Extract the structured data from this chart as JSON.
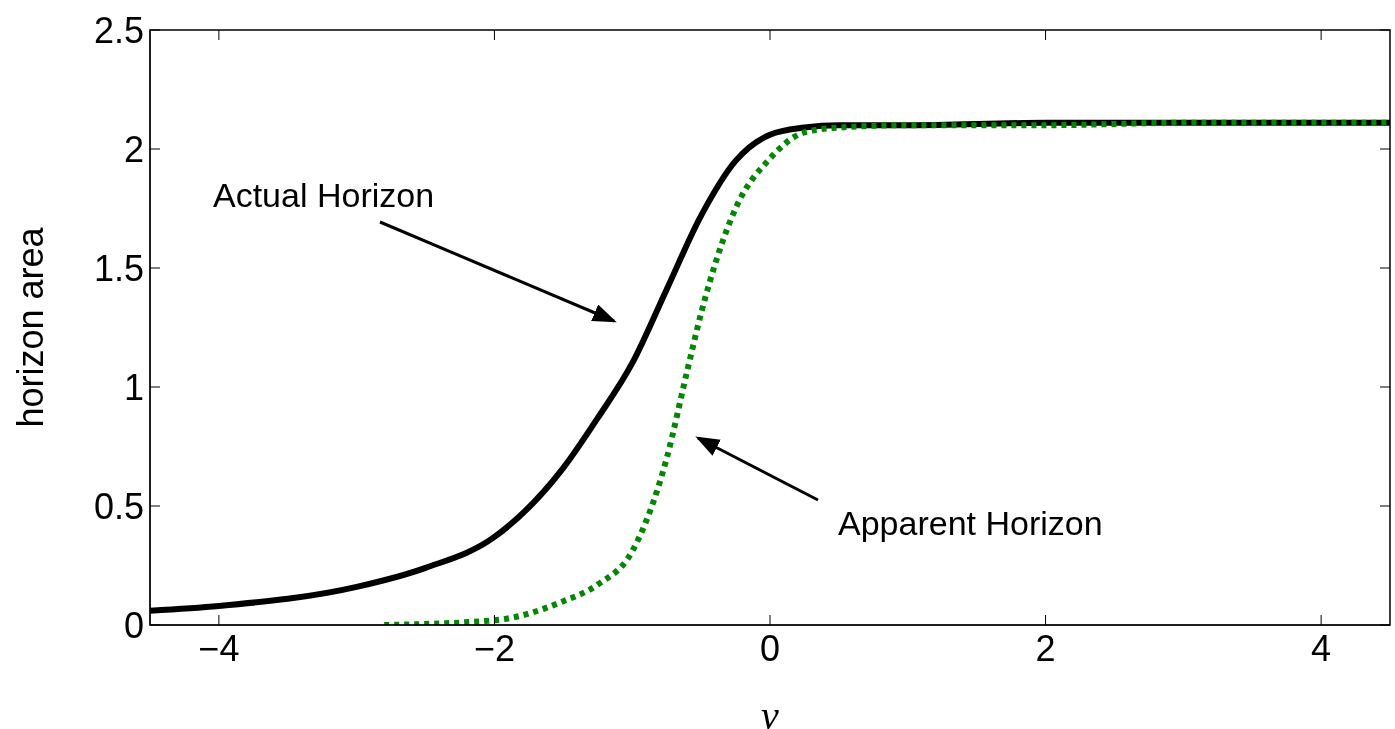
{
  "chart_data": {
    "type": "line",
    "xlabel": "v",
    "ylabel": "horizon area",
    "xlim": [
      -4.5,
      4.5
    ],
    "xticks": [
      -4,
      -2,
      0,
      2,
      4
    ],
    "ylim": [
      0,
      2.5
    ],
    "yticks": [
      0,
      0.5,
      1,
      1.5,
      2,
      2.5
    ],
    "grid": false,
    "legend": false,
    "marker": "none",
    "series": [
      {
        "color": "#000000",
        "line_style": "solid",
        "x": [
          -4.5,
          -4,
          -3,
          -2.5,
          -2,
          -1.5,
          -1.25,
          -1,
          -0.75,
          -0.5,
          -0.25,
          0,
          0.25,
          0.5,
          1,
          2,
          3,
          4.5
        ],
        "values": [
          0.06,
          0.08,
          0.16,
          0.24,
          0.37,
          0.66,
          0.87,
          1.1,
          1.41,
          1.72,
          1.95,
          2.06,
          2.09,
          2.1,
          2.1,
          2.11,
          2.11,
          2.11
        ]
      },
      {
        "color": "#008800",
        "line_style": "dotted",
        "x": [
          -2.8,
          -2,
          -1.5,
          -1.25,
          -1,
          -0.75,
          -0.6,
          -0.5,
          -0.25,
          0,
          0.25,
          0.5,
          1,
          2,
          3,
          4.5
        ],
        "values": [
          0,
          0.02,
          0.1,
          0.17,
          0.31,
          0.7,
          1.07,
          1.31,
          1.75,
          1.96,
          2.07,
          2.09,
          2.1,
          2.1,
          2.11,
          2.11
        ]
      }
    ],
    "annotations": [
      "Actual Horizon",
      "Apparent Horizon"
    ]
  }
}
